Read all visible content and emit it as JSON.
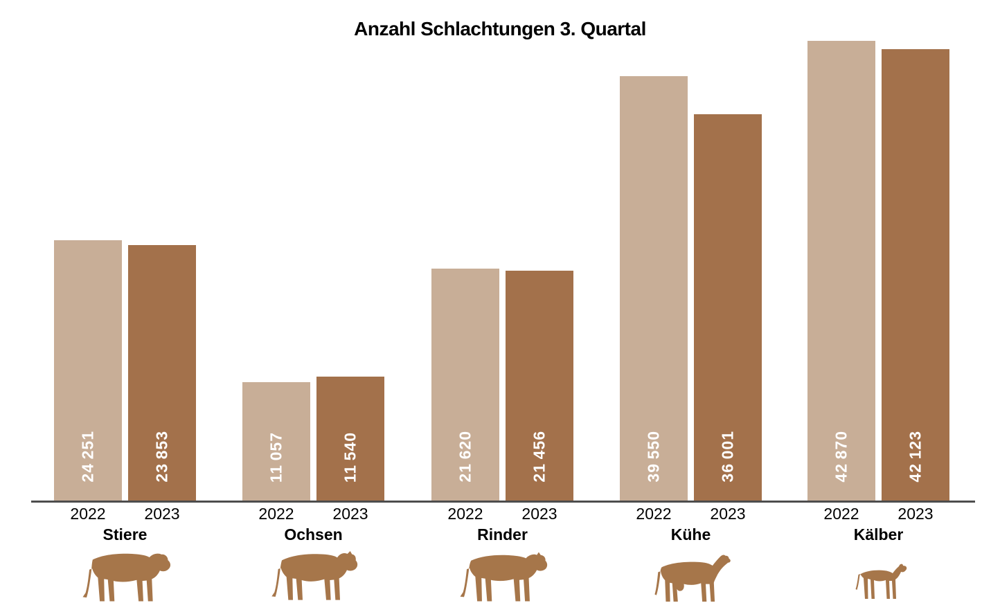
{
  "title": "Anzahl Schlachtungen 3. Quartal",
  "colors": {
    "bar_2022": "#c8ae97",
    "bar_2023": "#a3714b",
    "icon": "#a6764a",
    "axis": "#4d4d4d",
    "value_text": "#ffffff",
    "label_text": "#000000",
    "background": "#ffffff"
  },
  "chart_data": {
    "type": "bar",
    "title": "Anzahl Schlachtungen 3. Quartal",
    "categories": [
      "Stiere",
      "Ochsen",
      "Rinder",
      "Kühe",
      "Kälber"
    ],
    "category_icons": [
      "bull-icon",
      "ox-icon",
      "heifer-icon",
      "cow-icon",
      "calf-icon"
    ],
    "series": [
      {
        "name": "2022",
        "color": "#c8ae97",
        "values": [
          24251,
          11057,
          21620,
          39550,
          42870
        ],
        "labels": [
          "24 251",
          "11 057",
          "21 620",
          "39 550",
          "42 870"
        ]
      },
      {
        "name": "2023",
        "color": "#a3714b",
        "values": [
          23853,
          11540,
          21456,
          36001,
          42123
        ],
        "labels": [
          "23 853",
          "11 540",
          "21 456",
          "36 001",
          "42 123"
        ]
      }
    ],
    "ylim": [
      0,
      44000
    ],
    "grid": false,
    "legend": "none",
    "value_label_position": "inside-bottom-vertical",
    "x_tick_labels_per_group": [
      "2022",
      "2023"
    ]
  }
}
